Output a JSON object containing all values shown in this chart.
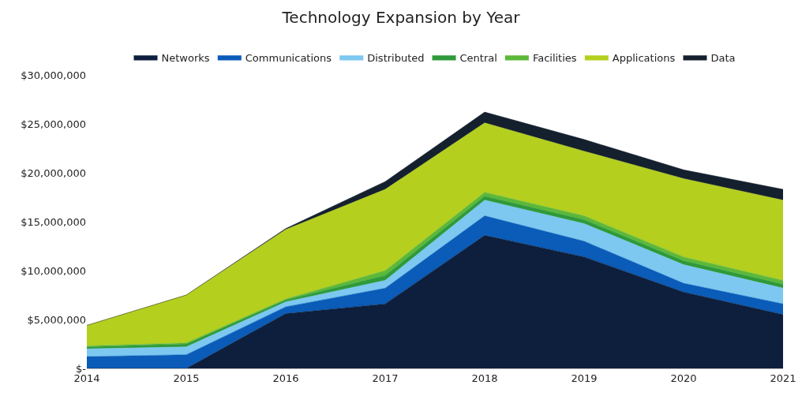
{
  "chart_data": {
    "type": "area",
    "title": "Technology Expansion by Year",
    "stacked": true,
    "legend": "top",
    "grid": false,
    "categories": [
      "2014",
      "2015",
      "2016",
      "2017",
      "2018",
      "2019",
      "2020",
      "2021"
    ],
    "ylim": [
      0,
      30000000
    ],
    "yticks": [
      {
        "value": 0,
        "label": "$-"
      },
      {
        "value": 5000000,
        "label": "$5,000,000"
      },
      {
        "value": 10000000,
        "label": "$10,000,000"
      },
      {
        "value": 15000000,
        "label": "$15,000,000"
      },
      {
        "value": 20000000,
        "label": "$20,000,000"
      },
      {
        "value": 25000000,
        "label": "$25,000,000"
      },
      {
        "value": 30000000,
        "label": "$30,000,000"
      }
    ],
    "series": [
      {
        "name": "Networks",
        "color": "#0d1f3c",
        "values": [
          0,
          0,
          5600000,
          6600000,
          13600000,
          11400000,
          7800000,
          5500000
        ]
      },
      {
        "name": "Communications",
        "color": "#0a5cb8",
        "values": [
          1200000,
          1400000,
          700000,
          1600000,
          2000000,
          1600000,
          900000,
          1100000
        ]
      },
      {
        "name": "Distributed",
        "color": "#7cc8f0",
        "values": [
          800000,
          800000,
          500000,
          800000,
          1600000,
          1800000,
          1900000,
          1600000
        ]
      },
      {
        "name": "Central",
        "color": "#2e9a3a",
        "values": [
          200000,
          300000,
          200000,
          500000,
          400000,
          400000,
          400000,
          400000
        ]
      },
      {
        "name": "Facilities",
        "color": "#5cb83a",
        "values": [
          100000,
          100000,
          100000,
          500000,
          400000,
          400000,
          400000,
          400000
        ]
      },
      {
        "name": "Applications",
        "color": "#b5cf1f",
        "values": [
          2100000,
          4900000,
          7100000,
          8300000,
          7100000,
          6600000,
          8000000,
          8200000
        ]
      },
      {
        "name": "Data",
        "color": "#14202e",
        "values": [
          0,
          0,
          100000,
          800000,
          1100000,
          1200000,
          900000,
          1100000
        ]
      }
    ]
  }
}
